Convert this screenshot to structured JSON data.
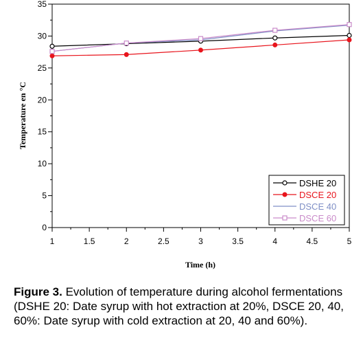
{
  "chart_data": {
    "type": "line",
    "title": "",
    "xlabel": "Time (h)",
    "ylabel": "Temperature en °C",
    "xlim": [
      1,
      5
    ],
    "ylim": [
      0,
      35
    ],
    "xticks": [
      "1",
      "1.5",
      "2",
      "2.5",
      "3",
      "3.5",
      "4",
      "4.5",
      "5"
    ],
    "yticks": [
      "0",
      "5",
      "10",
      "15",
      "20",
      "25",
      "30",
      "35"
    ],
    "grid": false,
    "legend_position": "bottom-right",
    "x": [
      1,
      2,
      3,
      4,
      5
    ],
    "series": [
      {
        "name": "DSHE 20",
        "values": [
          28.4,
          28.8,
          29.2,
          29.7,
          30.1
        ],
        "color": "#000000",
        "marker": "open-circle"
      },
      {
        "name": "DSCE 20",
        "values": [
          26.9,
          27.1,
          27.8,
          28.6,
          29.4
        ],
        "color": "#e8141c",
        "marker": "filled-circle"
      },
      {
        "name": "DSCE 40",
        "values": [
          27.6,
          28.9,
          29.4,
          30.8,
          31.7
        ],
        "color": "#7f8fc6",
        "marker": "none"
      },
      {
        "name": "DSCE 60",
        "values": [
          27.6,
          28.9,
          29.6,
          30.9,
          31.8
        ],
        "color": "#c98ac9",
        "marker": "open-square"
      }
    ]
  },
  "caption": {
    "label": "Figure 3.",
    "text": " Evolution of temperature during alcohol fermentations (DSHE 20: Date syrup with hot extraction at 20%, DSCE 20, 40, 60%: Date syrup with cold extraction at 20, 40 and 60%)."
  }
}
